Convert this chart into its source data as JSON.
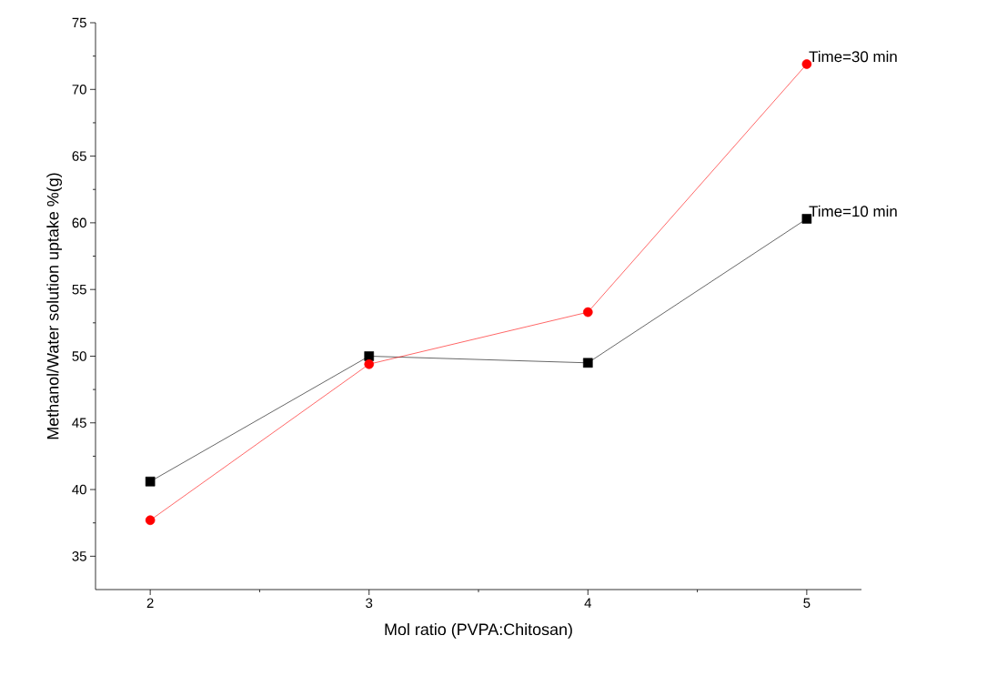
{
  "chart_data": {
    "type": "line",
    "xlabel": "Mol ratio (PVPA:Chitosan)",
    "ylabel": "Methanol/Water solution uptake %(g)",
    "x": [
      2,
      3,
      4,
      5
    ],
    "series": [
      {
        "name": "Time=10 min",
        "color": "#000000",
        "marker": "square",
        "values": [
          40.6,
          50.0,
          49.5,
          60.3
        ]
      },
      {
        "name": "Time=30 min",
        "color": "#ff0000",
        "marker": "circle",
        "values": [
          37.7,
          49.4,
          53.3,
          71.9
        ]
      }
    ],
    "xlim": [
      1.75,
      5.25
    ],
    "xticks": [
      2,
      3,
      4,
      5
    ],
    "ylim": [
      32.5,
      75
    ],
    "yticks": [
      35,
      40,
      45,
      50,
      55,
      60,
      65,
      70,
      75
    ],
    "grid": false,
    "legend": false,
    "line_style": "solid"
  }
}
